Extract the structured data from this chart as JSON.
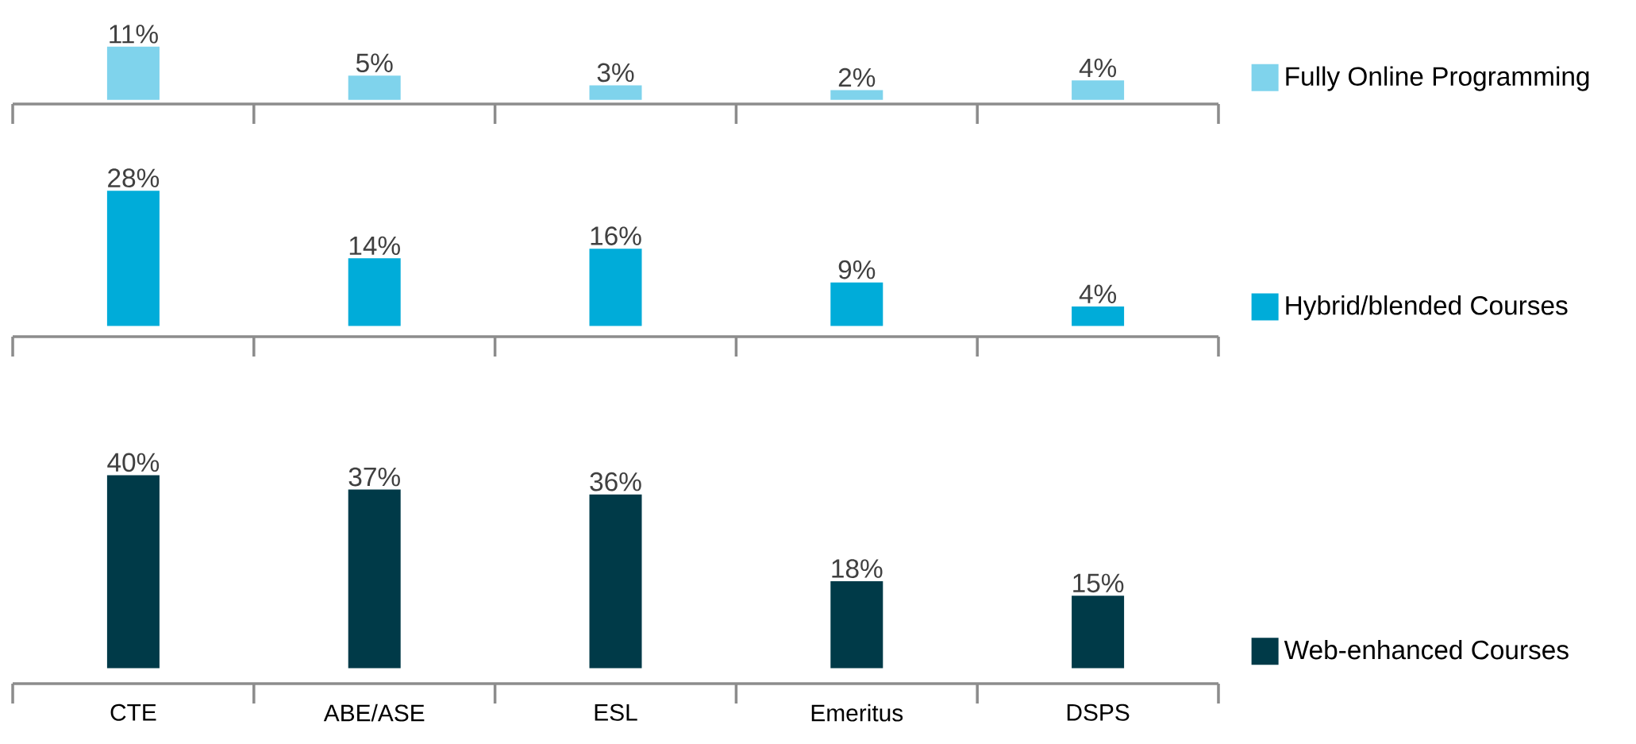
{
  "chart_data": [
    {
      "type": "bar",
      "categories": [
        null,
        null,
        null,
        null,
        null
      ],
      "legend": "right",
      "series": [
        {
          "name": "Fully Online Programming",
          "color": "#7fd3ec",
          "values": [
            11,
            5,
            3,
            2,
            4
          ],
          "value_labels": [
            "11%",
            "5%",
            "3%",
            "2%",
            "4%"
          ]
        }
      ]
    },
    {
      "type": "bar",
      "categories": [
        null,
        null,
        null,
        null,
        null
      ],
      "legend": "right",
      "series": [
        {
          "name": "Hybrid/blended Courses",
          "color": "#00acd9",
          "values": [
            28,
            14,
            16,
            9,
            4
          ],
          "value_labels": [
            "28%",
            "14%",
            "16%",
            "9%",
            "4%"
          ]
        }
      ]
    },
    {
      "type": "bar",
      "categories": [
        "CTE",
        "ABE/ASE",
        "ESL",
        "Emeritus",
        "DSPS"
      ],
      "legend": "right",
      "tick_labels": "x",
      "series": [
        {
          "name": "Web-enhanced Courses",
          "color": "#003a48",
          "values": [
            40,
            37,
            36,
            18,
            15
          ],
          "value_labels": [
            "40%",
            "37%",
            "36%",
            "18%",
            "15%"
          ]
        }
      ]
    }
  ]
}
